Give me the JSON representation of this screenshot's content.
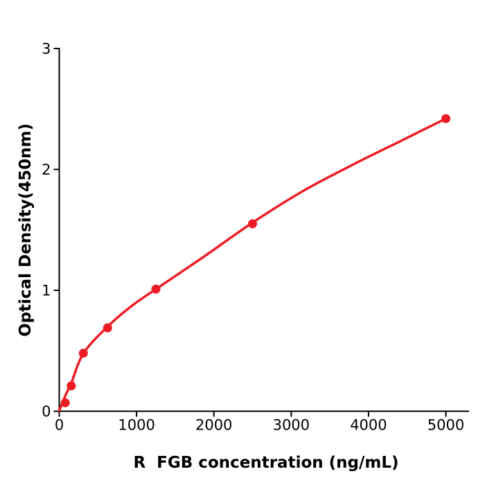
{
  "figure": {
    "background_color": "#ffffff",
    "axis_color": "#000000",
    "accent_color": "#ed1c24"
  },
  "chart_data": {
    "type": "scatter",
    "title": "",
    "xlabel": "R  FGB concentration (ng/mL)",
    "ylabel": "Optical Density(450nm)",
    "xlim": [
      0,
      5300
    ],
    "ylim": [
      0,
      3
    ],
    "grid": false,
    "legend": "none",
    "x_ticks": [
      0,
      1000,
      2000,
      3000,
      4000,
      5000
    ],
    "y_ticks": [
      0,
      1,
      2,
      3
    ],
    "series": [
      {
        "name": "standard-points",
        "marker_color": "#ed1c24",
        "points": [
          {
            "x": 78,
            "y": 0.07
          },
          {
            "x": 156,
            "y": 0.21
          },
          {
            "x": 312,
            "y": 0.48
          },
          {
            "x": 625,
            "y": 0.69
          },
          {
            "x": 1250,
            "y": 1.01
          },
          {
            "x": 2500,
            "y": 1.55
          },
          {
            "x": 5000,
            "y": 2.42
          }
        ]
      }
    ],
    "fit_curve": {
      "name": "fitted-standard-curve",
      "line_color": "#ed1c24",
      "samples": [
        [
          0,
          0.005
        ],
        [
          80,
          0.13
        ],
        [
          160,
          0.24
        ],
        [
          315,
          0.48
        ],
        [
          625,
          0.7
        ],
        [
          935,
          0.87
        ],
        [
          1250,
          1.01
        ],
        [
          1875,
          1.28
        ],
        [
          2500,
          1.56
        ],
        [
          3150,
          1.82
        ],
        [
          3800,
          2.04
        ],
        [
          4400,
          2.23
        ],
        [
          5000,
          2.42
        ]
      ]
    }
  }
}
